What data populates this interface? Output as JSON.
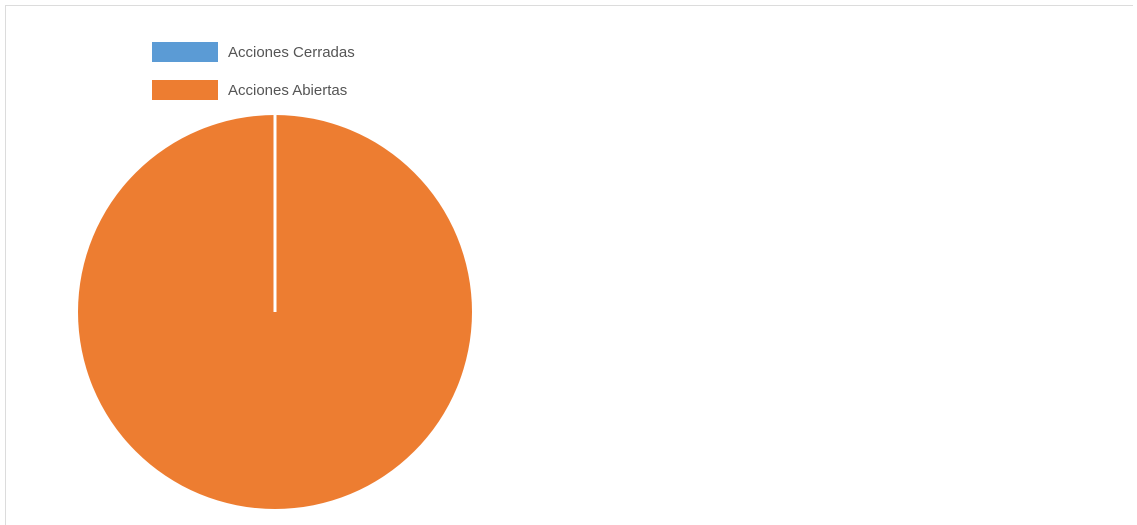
{
  "chart_data": {
    "type": "pie",
    "title": "",
    "categories": [
      "Acciones Cerradas",
      "Acciones Abiertas"
    ],
    "values": [
      0,
      100
    ],
    "colors": [
      "#5b9bd5",
      "#ed7d31"
    ],
    "legend_position": "top-left",
    "slice_border_color": "#ffffff"
  }
}
